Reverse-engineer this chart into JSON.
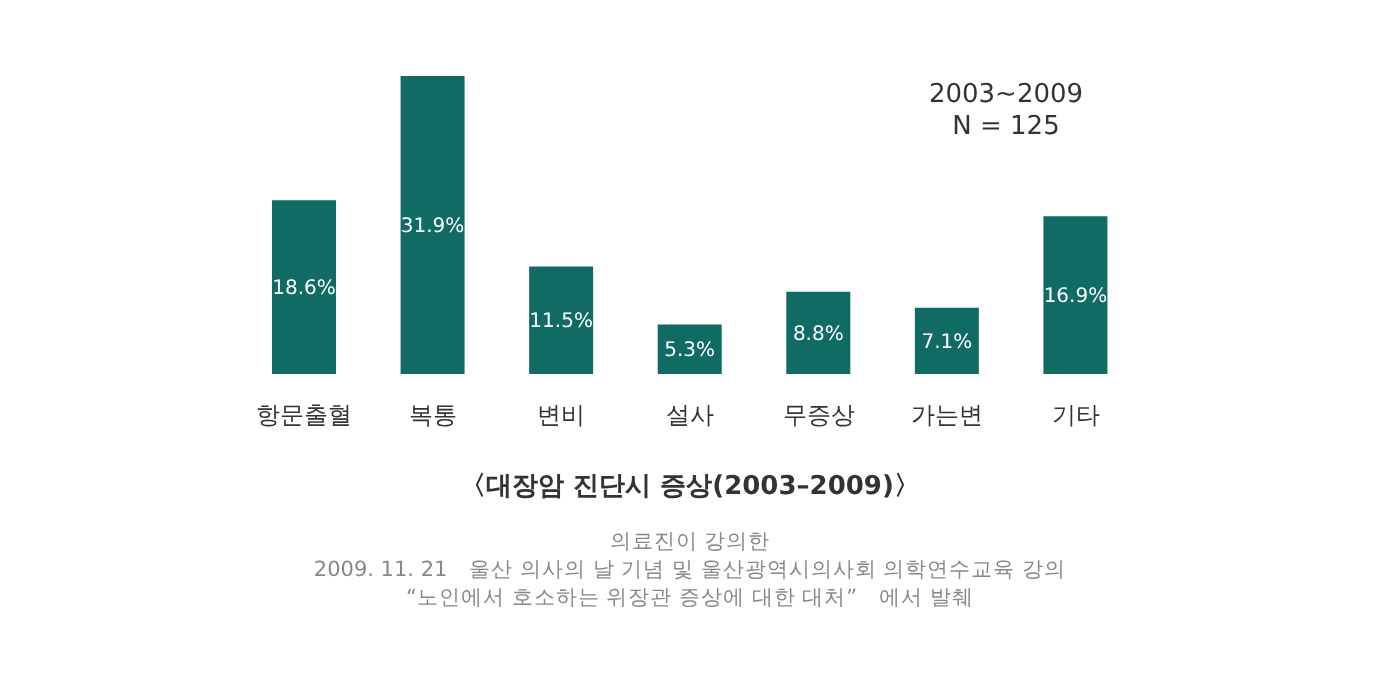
{
  "chart_data": {
    "type": "bar",
    "title": "〈대장암 진단시 증상(2003–2009)〉",
    "categories": [
      "항문출혈",
      "복통",
      "변비",
      "설사",
      "무증상",
      "가는변",
      "기타"
    ],
    "values": [
      18.6,
      31.9,
      11.5,
      5.3,
      8.8,
      7.1,
      16.9
    ],
    "value_labels": [
      "18.6%",
      "31.9%",
      "11.5%",
      "5.3%",
      "8.8%",
      "7.1%",
      "16.9%"
    ],
    "color": "#0f6b63",
    "annotations": [
      "2003~2009",
      "N = 125",
      "의료진이 강의한",
      "2009. 11. 21　울산 의사의 날 기념 및 울산광역시의사회 의학연수교육 강의",
      "“노인에서 호소하는 위장관 증상에 대한 대처”　에서 발췌"
    ]
  }
}
